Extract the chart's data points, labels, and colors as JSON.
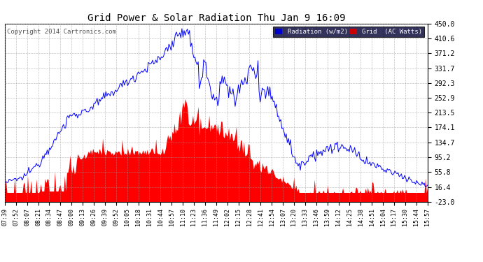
{
  "title": "Grid Power & Solar Radiation Thu Jan 9 16:09",
  "copyright": "Copyright 2014 Cartronics.com",
  "yticks": [
    450.0,
    410.6,
    371.2,
    331.7,
    292.3,
    252.9,
    213.5,
    174.1,
    134.7,
    95.2,
    55.8,
    16.4,
    -23.0
  ],
  "ymin": -23.0,
  "ymax": 450.0,
  "bg_color": "#ffffff",
  "plot_bg_color": "#ffffff",
  "grid_color": "#999999",
  "radiation_color": "#0000ff",
  "grid_power_color": "#ff0000",
  "xtick_labels": [
    "07:39",
    "07:52",
    "08:07",
    "08:21",
    "08:34",
    "08:47",
    "09:00",
    "09:13",
    "09:26",
    "09:39",
    "09:52",
    "10:05",
    "10:18",
    "10:31",
    "10:44",
    "10:57",
    "11:10",
    "11:23",
    "11:36",
    "11:49",
    "12:02",
    "12:15",
    "12:28",
    "12:41",
    "12:54",
    "13:07",
    "13:20",
    "13:33",
    "13:46",
    "13:59",
    "14:12",
    "14:25",
    "14:38",
    "14:51",
    "15:04",
    "15:17",
    "15:30",
    "15:44",
    "15:57"
  ],
  "n_points": 390
}
